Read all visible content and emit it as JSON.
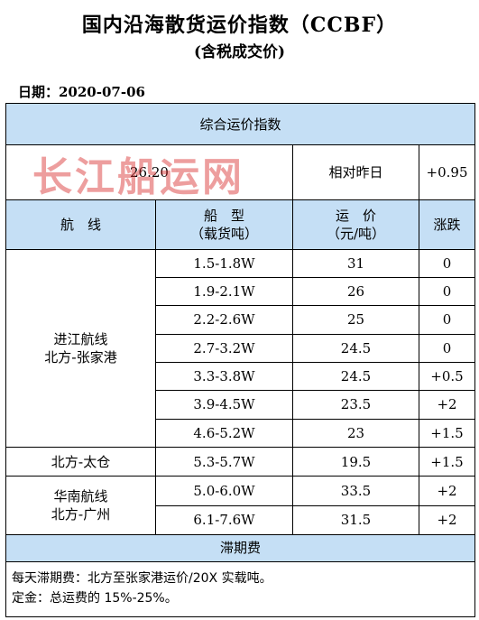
{
  "header": {
    "title": "国内沿海散货运价指数（CCBF）",
    "subtitle": "(含税成交价)",
    "date": "日期：2020-07-06"
  },
  "composite": {
    "label": "综合运价指数",
    "value": "26.20",
    "compare_label": "相对昨日",
    "change": "+0.95"
  },
  "columns": {
    "route": "航　线",
    "ship_type_line1": "船　型",
    "ship_type_line2": "（载货吨）",
    "price_line1": "运　价",
    "price_line2": "（元/吨）",
    "change": "涨跌"
  },
  "groups": [
    {
      "route_line1": "进江航线",
      "route_line2": "北方-张家港",
      "rows": [
        {
          "ship": "1.5-1.8W",
          "price": "31",
          "change": "0"
        },
        {
          "ship": "1.9-2.1W",
          "price": "26",
          "change": "0"
        },
        {
          "ship": "2.2-2.6W",
          "price": "25",
          "change": "0"
        },
        {
          "ship": "2.7-3.2W",
          "price": "24.5",
          "change": "0"
        },
        {
          "ship": "3.3-3.8W",
          "price": "24.5",
          "change": "+0.5"
        },
        {
          "ship": "3.9-4.5W",
          "price": "23.5",
          "change": "+2"
        },
        {
          "ship": "4.6-5.2W",
          "price": "23",
          "change": "+1.5"
        }
      ]
    },
    {
      "route_line1": "北方-太仓",
      "route_line2": "",
      "rows": [
        {
          "ship": "5.3-5.7W",
          "price": "19.5",
          "change": "+1.5"
        }
      ]
    },
    {
      "route_line1": "华南航线",
      "route_line2": "北方-广州",
      "rows": [
        {
          "ship": "5.0-6.0W",
          "price": "33.5",
          "change": "+2"
        },
        {
          "ship": "6.1-7.6W",
          "price": "31.5",
          "change": "+2"
        }
      ]
    }
  ],
  "demurrage": {
    "label": "滞期费",
    "note1": "每天滞期费：北方至张家港运价/20X 实载吨。",
    "note2": "定金：总运费的 15%-25%。"
  },
  "watermark": "长江船运网",
  "colors": {
    "header_fill": "#c5dff5",
    "watermark": "#d72828"
  }
}
